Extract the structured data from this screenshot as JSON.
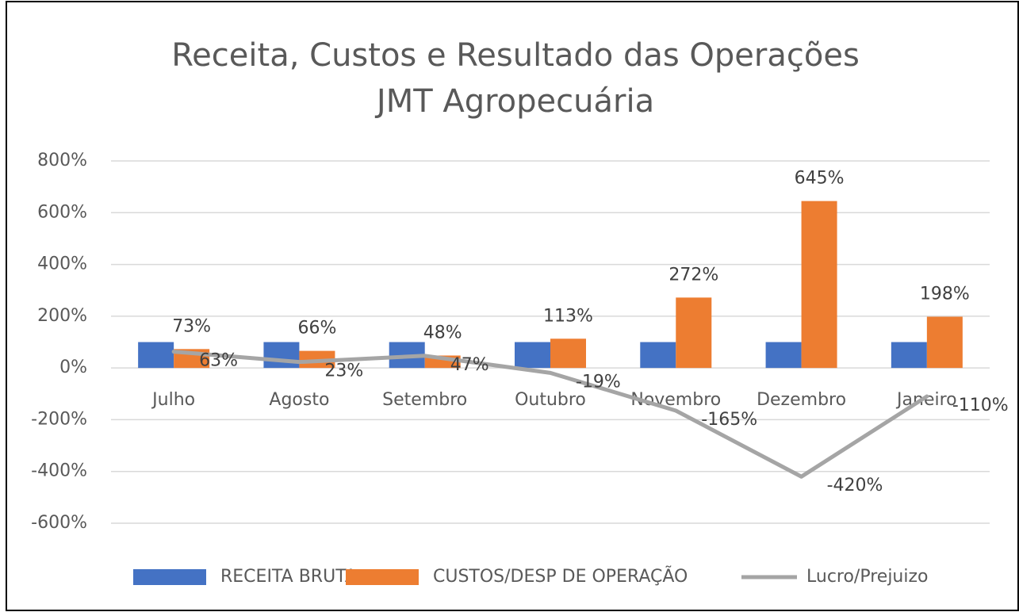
{
  "chart_data": {
    "type": "bar-line",
    "title": "Receita, Custos e Resultado das Operações",
    "subtitle": "JMT Agropecuária",
    "categories": [
      "Julho",
      "Agosto",
      "Setembro",
      "Outubro",
      "Novembro",
      "Dezembro",
      "Janeiro"
    ],
    "series": [
      {
        "name": "RECEITA BRUTA",
        "type": "bar",
        "color": "#4472c4",
        "values": [
          100,
          100,
          100,
          100,
          100,
          100,
          100
        ]
      },
      {
        "name": "CUSTOS/DESP DE OPERAÇÃO",
        "type": "bar",
        "color": "#ed7d31",
        "values": [
          73,
          66,
          48,
          113,
          272,
          645,
          198
        ],
        "value_labels": [
          "73%",
          "66%",
          "48%",
          "113%",
          "272%",
          "645%",
          "198%"
        ]
      },
      {
        "name": "Lucro/Prejuizo",
        "type": "line",
        "color": "#a5a5a5",
        "values": [
          63,
          23,
          47,
          -19,
          -165,
          -420,
          -110
        ],
        "value_labels": [
          "63%",
          "23%",
          "47%",
          "-19%",
          "-165%",
          "-420%",
          "-110%"
        ]
      }
    ],
    "ylim": [
      -600,
      800
    ],
    "yticks": [
      {
        "value": -600,
        "label": "-600%"
      },
      {
        "value": -400,
        "label": "-400%"
      },
      {
        "value": -200,
        "label": "-200%"
      },
      {
        "value": 0,
        "label": "0%"
      },
      {
        "value": 200,
        "label": "200%"
      },
      {
        "value": 400,
        "label": "400%"
      },
      {
        "value": 600,
        "label": "600%"
      },
      {
        "value": 800,
        "label": "800%"
      }
    ],
    "grid": true,
    "legend": "bottom"
  }
}
